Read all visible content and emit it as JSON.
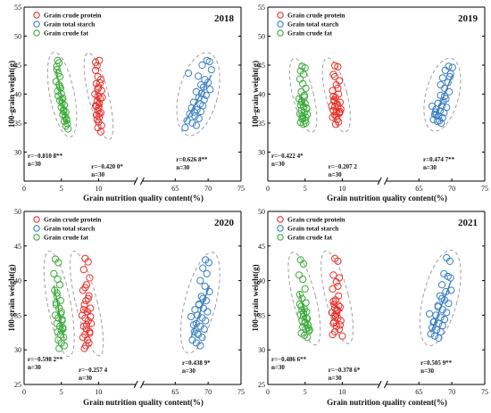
{
  "colors": {
    "protein": "#e8302a",
    "starch": "#3a7fc1",
    "fat": "#3aab3a",
    "ellipse": "#9e9e9e",
    "axis": "#000000"
  },
  "chart_data": [
    {
      "type": "scatter",
      "year": "2018",
      "xlabel": "Grain nutrition quality content(%)",
      "ylabel": "100-grain weight(g)",
      "ylim": [
        25,
        55
      ],
      "yticks": [
        30,
        35,
        40,
        45,
        50,
        55
      ],
      "xlim_left": [
        0,
        15
      ],
      "xticks_left": [
        0,
        5,
        10
      ],
      "xlim_right": [
        60,
        75
      ],
      "xticks_right": [
        65,
        70,
        75
      ],
      "axis_break": true,
      "legend_position": "top-left",
      "series": [
        {
          "name": "Grain crude protein",
          "key": "protein",
          "r_label": "r=−0.420 0*",
          "n_label": "n=30",
          "x": [
            9.6,
            9.8,
            10.1,
            9.9,
            10.3,
            9.7,
            10.0,
            10.4,
            9.5,
            9.9,
            10.2,
            9.8,
            10.1,
            9.6,
            10.0,
            9.9,
            10.3,
            9.7,
            10.1,
            9.8,
            10.0,
            10.4,
            9.6,
            10.2,
            9.9,
            10.5,
            9.7,
            10.1,
            9.9,
            10.3
          ],
          "y": [
            45.5,
            44.9,
            45.8,
            43.0,
            42.5,
            41.8,
            41.2,
            40.6,
            40.0,
            39.6,
            39.2,
            38.8,
            38.4,
            38.0,
            37.6,
            37.2,
            36.8,
            36.4,
            36.0,
            35.6,
            35.2,
            34.6,
            44.1,
            41.9,
            40.9,
            39.4,
            37.9,
            36.6,
            34.2,
            33.5
          ]
        },
        {
          "name": "Grain total starch",
          "key": "starch",
          "r_label": "r=0.626 8**",
          "n_label": "n=30",
          "x": [
            69.8,
            70.2,
            69.1,
            70.5,
            68.5,
            69.5,
            70.0,
            68.9,
            69.3,
            70.3,
            68.2,
            69.0,
            69.7,
            68.6,
            69.4,
            67.8,
            68.8,
            69.2,
            67.5,
            68.3,
            68.9,
            67.2,
            68.0,
            68.6,
            66.8,
            67.6,
            68.2,
            66.5,
            67.0,
            67.9
          ],
          "y": [
            45.8,
            45.6,
            45.0,
            44.2,
            43.1,
            42.5,
            42.0,
            41.6,
            41.2,
            40.8,
            40.4,
            40.1,
            39.8,
            39.4,
            39.0,
            38.6,
            38.3,
            38.0,
            37.6,
            37.3,
            37.0,
            36.6,
            36.2,
            35.8,
            35.4,
            35.0,
            34.6,
            34.2,
            43.6,
            36.9
          ]
        },
        {
          "name": "Grain crude fat",
          "key": "fat",
          "r_label": "r=−0.810 8**",
          "n_label": "n=30",
          "x": [
            4.5,
            4.7,
            4.4,
            4.6,
            4.8,
            4.3,
            4.7,
            4.9,
            4.5,
            5.0,
            4.6,
            5.2,
            4.8,
            5.1,
            5.4,
            5.0,
            5.3,
            5.6,
            5.2,
            5.5,
            5.7,
            5.4,
            5.8,
            5.6,
            5.9,
            4.4,
            4.8,
            5.1,
            5.3,
            5.7
          ],
          "y": [
            45.8,
            45.4,
            44.2,
            43.6,
            43.0,
            42.2,
            41.6,
            41.0,
            40.5,
            40.1,
            39.7,
            39.3,
            38.9,
            38.5,
            38.1,
            37.7,
            37.3,
            36.9,
            36.5,
            36.1,
            35.7,
            35.3,
            34.9,
            34.5,
            34.0,
            44.8,
            41.3,
            39.0,
            37.0,
            35.5
          ]
        }
      ]
    },
    {
      "type": "scatter",
      "year": "2019",
      "xlabel": "Grain nutrition quality content(%)",
      "ylabel": "100-grain weight(g)",
      "ylim": [
        25,
        55
      ],
      "yticks": [
        30,
        35,
        40,
        45,
        50,
        55
      ],
      "xlim_left": [
        0,
        15
      ],
      "xticks_left": [
        0,
        5,
        10
      ],
      "xlim_right": [
        60,
        75
      ],
      "xticks_right": [
        65,
        70,
        75
      ],
      "axis_break": true,
      "legend_position": "top-left",
      "series": [
        {
          "name": "Grain crude protein",
          "key": "protein",
          "r_label": "r=−0.207 2",
          "n_label": "n=30",
          "x": [
            9.0,
            9.4,
            8.8,
            9.6,
            9.2,
            8.7,
            9.5,
            9.1,
            8.9,
            9.7,
            9.3,
            8.6,
            9.0,
            9.4,
            9.8,
            8.8,
            9.2,
            9.6,
            9.0,
            8.7,
            9.3,
            9.5,
            9.1,
            8.9,
            9.7,
            9.2,
            8.8,
            9.4,
            9.0,
            9.6
          ],
          "y": [
            44.9,
            44.7,
            43.4,
            42.3,
            41.6,
            40.6,
            40.0,
            39.4,
            39.0,
            38.6,
            38.3,
            38.0,
            37.8,
            37.6,
            37.4,
            37.2,
            37.0,
            36.7,
            36.4,
            36.0,
            35.6,
            35.2,
            34.8,
            38.8,
            37.0,
            36.2,
            39.6,
            41.0,
            43.0,
            36.8
          ]
        },
        {
          "name": "Grain total starch",
          "key": "starch",
          "r_label": "r=0.474 7**",
          "n_label": "n=30",
          "x": [
            69.5,
            70.1,
            69.0,
            69.8,
            68.6,
            69.4,
            68.9,
            69.6,
            68.3,
            69.1,
            68.7,
            67.9,
            68.5,
            69.2,
            67.6,
            68.2,
            68.8,
            67.4,
            68.0,
            68.6,
            67.2,
            67.8,
            68.4,
            67.0,
            67.6,
            68.1,
            68.9,
            69.7,
            68.3,
            67.5
          ],
          "y": [
            44.8,
            44.6,
            44.1,
            43.5,
            42.8,
            42.0,
            41.0,
            40.4,
            39.8,
            39.2,
            38.8,
            38.4,
            38.0,
            37.7,
            37.4,
            37.1,
            36.8,
            36.5,
            36.2,
            35.9,
            35.6,
            35.3,
            35.0,
            37.9,
            36.4,
            35.4,
            39.6,
            43.0,
            41.6,
            36.9
          ]
        },
        {
          "name": "Grain crude fat",
          "key": "fat",
          "r_label": "r=−0.422 4*",
          "n_label": "n=30",
          "x": [
            4.6,
            5.0,
            4.4,
            4.8,
            4.3,
            4.7,
            5.1,
            4.5,
            4.9,
            4.2,
            4.6,
            5.0,
            4.4,
            4.8,
            5.2,
            4.5,
            4.9,
            4.3,
            4.7,
            5.1,
            4.6,
            5.0,
            4.4,
            4.8,
            5.2,
            4.5,
            4.9,
            5.3,
            4.7,
            5.1
          ],
          "y": [
            44.8,
            44.5,
            44.0,
            43.4,
            42.6,
            41.8,
            41.0,
            40.4,
            39.8,
            39.2,
            38.8,
            38.4,
            38.1,
            37.8,
            37.5,
            37.2,
            36.9,
            36.6,
            36.3,
            36.0,
            35.7,
            35.4,
            35.1,
            34.8,
            37.6,
            38.6,
            39.5,
            36.5,
            35.9,
            35.0
          ]
        }
      ]
    },
    {
      "type": "scatter",
      "year": "2020",
      "xlabel": "Grain nutrition quality content(%)",
      "ylabel": "100-grain weight(g)",
      "ylim": [
        25,
        50
      ],
      "yticks": [
        25,
        30,
        35,
        40,
        45,
        50
      ],
      "xlim_left": [
        0,
        15
      ],
      "xticks_left": [
        0,
        5,
        10
      ],
      "xlim_right": [
        60,
        75
      ],
      "xticks_right": [
        65,
        70,
        75
      ],
      "axis_break": true,
      "legend_position": "top-left",
      "series": [
        {
          "name": "Grain crude protein",
          "key": "protein",
          "r_label": "r=−0.257 4",
          "n_label": "n=30",
          "x": [
            8.2,
            8.6,
            8.0,
            8.8,
            8.4,
            7.9,
            8.7,
            8.3,
            8.1,
            8.9,
            8.5,
            7.8,
            8.2,
            8.6,
            9.0,
            8.0,
            8.4,
            8.8,
            8.2,
            7.9,
            8.5,
            8.7,
            8.3,
            8.1,
            8.9,
            8.4,
            8.0,
            8.6,
            8.2,
            8.8
          ],
          "y": [
            43.2,
            42.7,
            41.6,
            40.4,
            39.4,
            38.6,
            37.8,
            37.1,
            36.5,
            36.0,
            35.5,
            35.0,
            34.6,
            34.2,
            33.8,
            33.4,
            33.0,
            32.6,
            32.2,
            31.8,
            31.4,
            31.0,
            30.6,
            30.2,
            34.8,
            33.6,
            35.8,
            37.4,
            39.0,
            32.4
          ]
        },
        {
          "name": "Grain total starch",
          "key": "starch",
          "r_label": "r=0.438 9*",
          "n_label": "n=30",
          "x": [
            69.6,
            70.1,
            69.2,
            69.8,
            68.8,
            69.5,
            70.2,
            69.0,
            69.7,
            68.6,
            69.3,
            69.9,
            68.4,
            69.1,
            69.6,
            68.2,
            68.8,
            69.4,
            67.9,
            68.5,
            69.1,
            67.6,
            68.2,
            68.8,
            67.4,
            68.0,
            68.6,
            69.2,
            67.8,
            68.4
          ],
          "y": [
            43.0,
            42.6,
            41.8,
            41.0,
            40.0,
            39.2,
            38.4,
            37.7,
            37.1,
            36.5,
            36.0,
            35.5,
            35.0,
            34.6,
            34.2,
            33.8,
            33.4,
            33.0,
            32.6,
            32.2,
            31.8,
            31.4,
            31.0,
            30.6,
            34.8,
            35.8,
            36.6,
            37.4,
            33.6,
            32.4
          ]
        },
        {
          "name": "Grain crude fat",
          "key": "fat",
          "r_label": "r=−0.598 2**",
          "n_label": "n=30",
          "x": [
            4.2,
            4.6,
            4.0,
            4.5,
            4.8,
            4.1,
            4.4,
            4.9,
            4.3,
            4.7,
            5.0,
            4.2,
            4.6,
            5.1,
            4.4,
            4.8,
            5.2,
            4.5,
            4.9,
            5.3,
            4.6,
            5.0,
            5.4,
            4.7,
            5.1,
            4.3,
            4.9,
            5.2,
            4.4,
            5.0
          ],
          "y": [
            43.1,
            42.6,
            41.0,
            40.2,
            39.4,
            38.6,
            37.8,
            37.1,
            36.5,
            36.0,
            35.5,
            35.0,
            34.6,
            34.2,
            33.8,
            33.4,
            33.0,
            32.6,
            32.2,
            31.8,
            31.4,
            31.0,
            30.6,
            30.2,
            34.4,
            36.8,
            35.2,
            33.2,
            38.2,
            32.8
          ]
        }
      ]
    },
    {
      "type": "scatter",
      "year": "2021",
      "xlabel": "Grain nutrition quality content(%)",
      "ylabel": "100-grain weight(g)",
      "ylim": [
        25,
        50
      ],
      "yticks": [
        25,
        30,
        35,
        40,
        45,
        50
      ],
      "xlim_left": [
        0,
        15
      ],
      "xticks_left": [
        0,
        5,
        10
      ],
      "xlim_right": [
        60,
        75
      ],
      "xticks_right": [
        65,
        70,
        75
      ],
      "axis_break": true,
      "legend_position": "top-left",
      "series": [
        {
          "name": "Grain crude protein",
          "key": "protein",
          "r_label": "r=−0.378 6*",
          "n_label": "n=30",
          "x": [
            9.0,
            9.4,
            8.8,
            9.6,
            9.2,
            8.7,
            9.5,
            9.1,
            8.9,
            9.7,
            9.3,
            8.6,
            9.0,
            9.4,
            9.8,
            8.8,
            9.2,
            9.6,
            9.0,
            8.7,
            9.3,
            9.5,
            9.1,
            8.9,
            9.7,
            9.2,
            8.8,
            9.4,
            9.0,
            10.0
          ],
          "y": [
            43.2,
            42.8,
            40.8,
            40.4,
            39.8,
            38.8,
            37.8,
            37.2,
            36.6,
            36.2,
            35.8,
            35.4,
            35.0,
            34.6,
            34.2,
            33.8,
            33.4,
            33.0,
            32.6,
            32.2,
            35.6,
            36.4,
            34.8,
            34.0,
            33.6,
            35.2,
            37.0,
            39.2,
            36.0,
            32.0
          ]
        },
        {
          "name": "Grain total starch",
          "key": "starch",
          "r_label": "r=0.505 9**",
          "n_label": "n=30",
          "x": [
            69.2,
            69.7,
            68.8,
            69.4,
            68.5,
            69.9,
            68.2,
            68.9,
            69.5,
            67.9,
            68.6,
            69.2,
            67.6,
            68.3,
            68.9,
            67.3,
            68.0,
            68.6,
            67.0,
            67.7,
            68.3,
            66.8,
            67.4,
            68.0,
            66.6,
            67.2,
            67.9,
            68.5,
            69.1,
            69.8
          ],
          "y": [
            43.3,
            42.8,
            41.0,
            40.6,
            39.4,
            38.6,
            37.8,
            37.2,
            36.7,
            36.2,
            35.8,
            35.4,
            35.0,
            34.7,
            34.4,
            34.1,
            33.8,
            33.5,
            33.2,
            32.9,
            32.6,
            32.3,
            32.0,
            31.7,
            35.2,
            34.0,
            36.4,
            37.4,
            38.4,
            40.4
          ]
        },
        {
          "name": "Grain crude fat",
          "key": "fat",
          "r_label": "r=−0.486 6**",
          "n_label": "n=30",
          "x": [
            4.4,
            4.8,
            4.2,
            4.7,
            5.0,
            4.3,
            4.6,
            5.1,
            4.5,
            4.9,
            5.2,
            4.4,
            4.8,
            5.3,
            4.6,
            5.0,
            5.4,
            4.7,
            5.1,
            5.5,
            4.5,
            4.9,
            5.3,
            4.6,
            5.0,
            5.4,
            4.3,
            4.8,
            5.2,
            5.6
          ],
          "y": [
            43.0,
            42.4,
            40.8,
            40.2,
            38.8,
            38.0,
            37.4,
            36.8,
            36.3,
            35.9,
            35.5,
            35.1,
            34.8,
            34.5,
            34.2,
            33.9,
            33.6,
            33.3,
            33.0,
            32.7,
            32.4,
            32.1,
            31.8,
            35.7,
            34.0,
            33.2,
            36.6,
            35.3,
            34.6,
            32.9
          ]
        }
      ]
    }
  ]
}
